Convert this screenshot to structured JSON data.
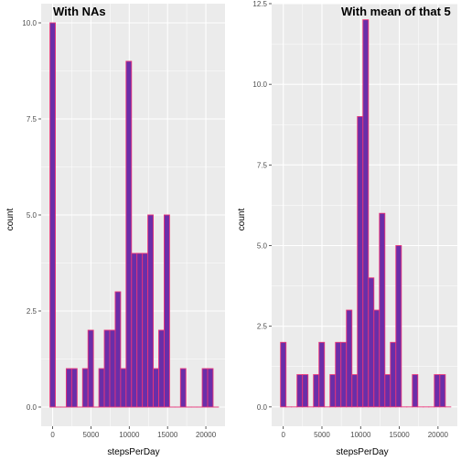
{
  "colors": {
    "panel_background": "#ebebeb",
    "gridline": "#ffffff",
    "bar_fill": "#6a2ea8",
    "bar_outline": "#e8367a",
    "text": "#4d4d4d"
  },
  "chart_data": [
    {
      "type": "bar",
      "title": "With NAs",
      "xlabel": "stepsPerDay",
      "ylabel": "count",
      "xlim": [
        -1500,
        22500
      ],
      "ylim": [
        -0.5,
        10.5
      ],
      "x_ticks": [
        0,
        5000,
        10000,
        15000,
        20000
      ],
      "x_tick_labels": [
        "0",
        "5000",
        "10000",
        "15000",
        "20000"
      ],
      "y_ticks": [
        0,
        2.5,
        5,
        7.5,
        10
      ],
      "y_tick_labels": [
        "0.0",
        "2.5",
        "5.0",
        "7.5",
        "10.0"
      ],
      "binwidth": 710,
      "bin_centers": [
        0,
        710,
        1420,
        2130,
        2840,
        3550,
        4260,
        4970,
        5680,
        6390,
        7100,
        7810,
        8520,
        9230,
        9940,
        10650,
        11360,
        12070,
        12780,
        13490,
        14200,
        14910,
        15620,
        16330,
        17040,
        17750,
        18460,
        19170,
        19880,
        20590,
        21300
      ],
      "values": [
        10,
        0,
        0,
        1,
        1,
        0,
        1,
        2,
        0,
        1,
        2,
        2,
        3,
        1,
        9,
        4,
        4,
        4,
        5,
        1,
        2,
        5,
        0,
        0,
        1,
        0,
        0,
        0,
        1,
        1,
        0
      ],
      "grid": true,
      "legend": "none"
    },
    {
      "type": "bar",
      "title": "With mean of that 5",
      "xlabel": "stepsPerDay",
      "ylabel": "count",
      "xlim": [
        -1500,
        22500
      ],
      "ylim": [
        -0.6,
        12.5
      ],
      "x_ticks": [
        0,
        5000,
        10000,
        15000,
        20000
      ],
      "x_tick_labels": [
        "0",
        "5000",
        "10000",
        "15000",
        "20000"
      ],
      "y_ticks": [
        0,
        2.5,
        5,
        7.5,
        10,
        12.5
      ],
      "y_tick_labels": [
        "0.0",
        "2.5",
        "5.0",
        "7.5",
        "10.0",
        "12.5"
      ],
      "binwidth": 710,
      "bin_centers": [
        0,
        710,
        1420,
        2130,
        2840,
        3550,
        4260,
        4970,
        5680,
        6390,
        7100,
        7810,
        8520,
        9230,
        9940,
        10650,
        11360,
        12070,
        12780,
        13490,
        14200,
        14910,
        15620,
        16330,
        17040,
        17750,
        18460,
        19170,
        19880,
        20590,
        21300
      ],
      "values": [
        2,
        0,
        0,
        1,
        1,
        0,
        1,
        2,
        0,
        1,
        2,
        2,
        3,
        1,
        9,
        12,
        4,
        3,
        6,
        1,
        2,
        5,
        0,
        0,
        1,
        0,
        0,
        0,
        1,
        1,
        0
      ],
      "grid": true,
      "legend": "none"
    }
  ]
}
